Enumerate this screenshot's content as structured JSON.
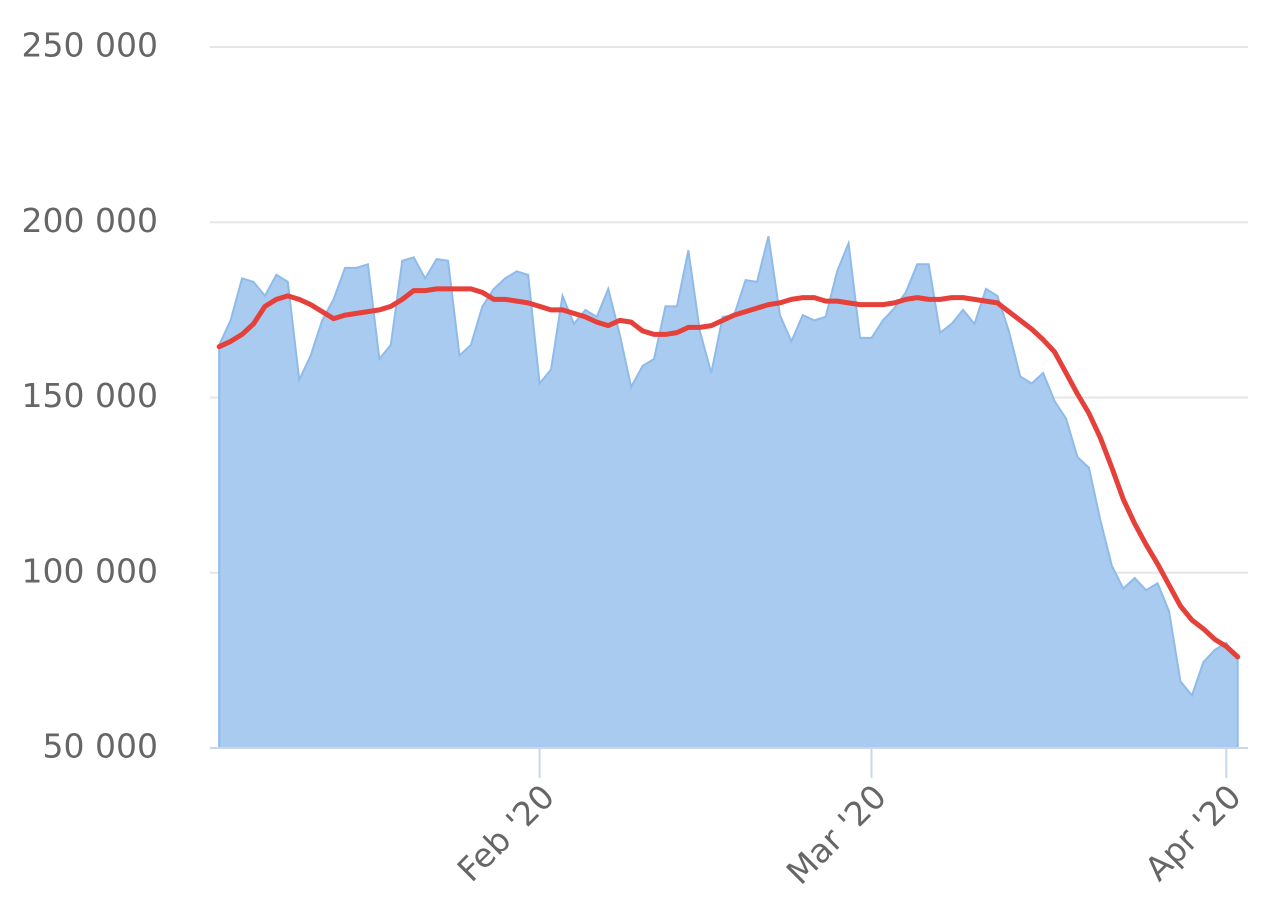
{
  "chart_data": {
    "type": "area",
    "x": [
      4,
      5,
      6,
      7,
      8,
      9,
      10,
      11,
      12,
      13,
      14,
      15,
      16,
      17,
      18,
      19,
      20,
      21,
      22,
      23,
      24,
      25,
      26,
      27,
      28,
      29,
      30,
      31,
      32,
      33,
      34,
      35,
      36,
      37,
      38,
      39,
      40,
      41,
      42,
      43,
      44,
      45,
      46,
      47,
      48,
      49,
      50,
      51,
      52,
      53,
      54,
      55,
      56,
      57,
      58,
      59,
      60,
      61,
      62,
      63,
      64,
      65,
      66,
      67,
      68,
      69,
      70,
      71,
      72,
      73,
      74,
      75,
      76,
      77,
      78,
      79,
      80,
      81,
      82,
      83,
      84,
      85,
      86,
      87,
      88,
      89,
      90,
      91,
      92,
      93
    ],
    "xlim": [
      3.2,
      93.9
    ],
    "xticks": [
      {
        "value": 32,
        "label": "Feb '20"
      },
      {
        "value": 61,
        "label": "Mar '20"
      },
      {
        "value": 92,
        "label": "Apr '20"
      }
    ],
    "ylim": [
      50000,
      250000
    ],
    "yticks": [
      {
        "value": 50000,
        "label": "50 000"
      },
      {
        "value": 100000,
        "label": "100 000"
      },
      {
        "value": 150000,
        "label": "150 000"
      },
      {
        "value": 200000,
        "label": "200 000"
      },
      {
        "value": 250000,
        "label": "250 000"
      }
    ],
    "grid": true,
    "series": [
      {
        "type": "area",
        "color": "#a9cbf0",
        "values": [
          165000,
          172000,
          184000,
          183000,
          179000,
          185000,
          183000,
          155000,
          162000,
          172000,
          178000,
          187000,
          187000,
          188000,
          161000,
          165000,
          189000,
          190000,
          184000,
          189500,
          189000,
          162000,
          165000,
          176000,
          181000,
          184000,
          186000,
          185000,
          154000,
          158000,
          179000,
          171000,
          175000,
          173000,
          181000,
          168000,
          153000,
          159000,
          161000,
          176000,
          176000,
          192000,
          169000,
          157000,
          173000,
          173500,
          183500,
          183000,
          196000,
          173500,
          166000,
          173500,
          172000,
          173000,
          186000,
          194000,
          167000,
          167000,
          172000,
          175500,
          180000,
          188000,
          188000,
          168500,
          171000,
          175000,
          171000,
          181000,
          179000,
          169000,
          156000,
          154000,
          157000,
          149000,
          144000,
          133000,
          130000,
          115000,
          102000,
          95500,
          98500,
          95000,
          97000,
          89000,
          69000,
          65000,
          74500,
          78000,
          80000,
          75000
        ]
      },
      {
        "type": "line",
        "color": "#e5403a",
        "values": [
          164500,
          166000,
          168000,
          171000,
          176000,
          178000,
          179000,
          178000,
          176500,
          174500,
          172500,
          173500,
          174000,
          174500,
          175000,
          176000,
          178000,
          180500,
          180500,
          181000,
          181000,
          181000,
          181000,
          180000,
          178000,
          178000,
          177500,
          177000,
          176000,
          175000,
          175000,
          174000,
          173000,
          171500,
          170500,
          172000,
          171500,
          169000,
          168000,
          168000,
          168500,
          170000,
          170000,
          170500,
          172000,
          173500,
          174500,
          175500,
          176500,
          177000,
          178000,
          178500,
          178500,
          177500,
          177500,
          177000,
          176500,
          176500,
          176500,
          177000,
          178000,
          178500,
          178000,
          178000,
          178500,
          178500,
          178000,
          177500,
          177000,
          174500,
          172000,
          169500,
          166500,
          163000,
          157000,
          151000,
          145500,
          138500,
          130000,
          121000,
          114000,
          108000,
          102500,
          96500,
          90500,
          86500,
          84000,
          81000,
          79000,
          76000
        ]
      }
    ]
  }
}
